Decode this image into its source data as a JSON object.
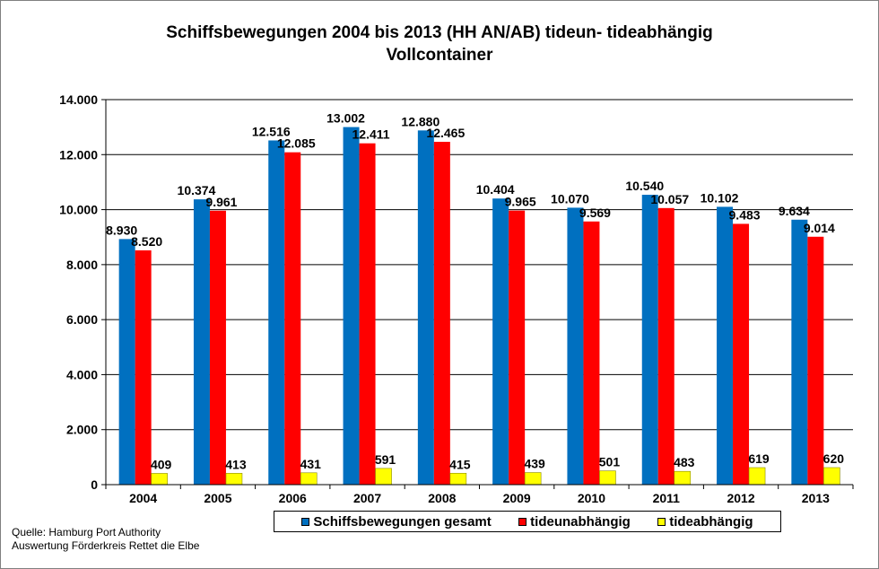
{
  "chart_data": {
    "type": "bar",
    "title": "Schiffsbewegungen 2004 bis 2013 (HH AN/AB)  tideun- tideabhängig",
    "subtitle": "Vollcontainer",
    "categories": [
      "2004",
      "2005",
      "2006",
      "2007",
      "2008",
      "2009",
      "2010",
      "2011",
      "2012",
      "2013"
    ],
    "series": [
      {
        "name": "Schiffsbewegungen gesamt",
        "color": "#0070C0",
        "values": [
          8930,
          10374,
          12516,
          13002,
          12880,
          10404,
          10070,
          10540,
          10102,
          9634
        ],
        "labels": [
          "8.930",
          "10.374",
          "12.516",
          "13.002",
          "12.880",
          "10.404",
          "10.070",
          "10.540",
          "10.102",
          "9.634"
        ]
      },
      {
        "name": "tideunabhängig",
        "color": "#FF0000",
        "values": [
          8520,
          9961,
          12085,
          12411,
          12465,
          9965,
          9569,
          10057,
          9483,
          9014
        ],
        "labels": [
          "8.520",
          "9.961",
          "12.085",
          "12.411",
          "12.465",
          "9.965",
          "9.569",
          "10.057",
          "9.483",
          "9.014"
        ]
      },
      {
        "name": "tideabhängig",
        "color": "#FFFF00",
        "values": [
          409,
          413,
          431,
          591,
          415,
          439,
          501,
          483,
          619,
          620
        ],
        "labels": [
          "409",
          "413",
          "431",
          "591",
          "415",
          "439",
          "501",
          "483",
          "619",
          "620"
        ]
      }
    ],
    "ylim": [
      0,
      14000
    ],
    "yticks": [
      0,
      2000,
      4000,
      6000,
      8000,
      10000,
      12000,
      14000
    ],
    "ytick_labels": [
      "0",
      "2.000",
      "4.000",
      "6.000",
      "8.000",
      "10.000",
      "12.000",
      "14.000"
    ],
    "grid": true,
    "legend": "bottom"
  },
  "source_lines": [
    "Quelle: Hamburg Port Authority",
    "Auswertung Förderkreis Rettet  die Elbe"
  ]
}
